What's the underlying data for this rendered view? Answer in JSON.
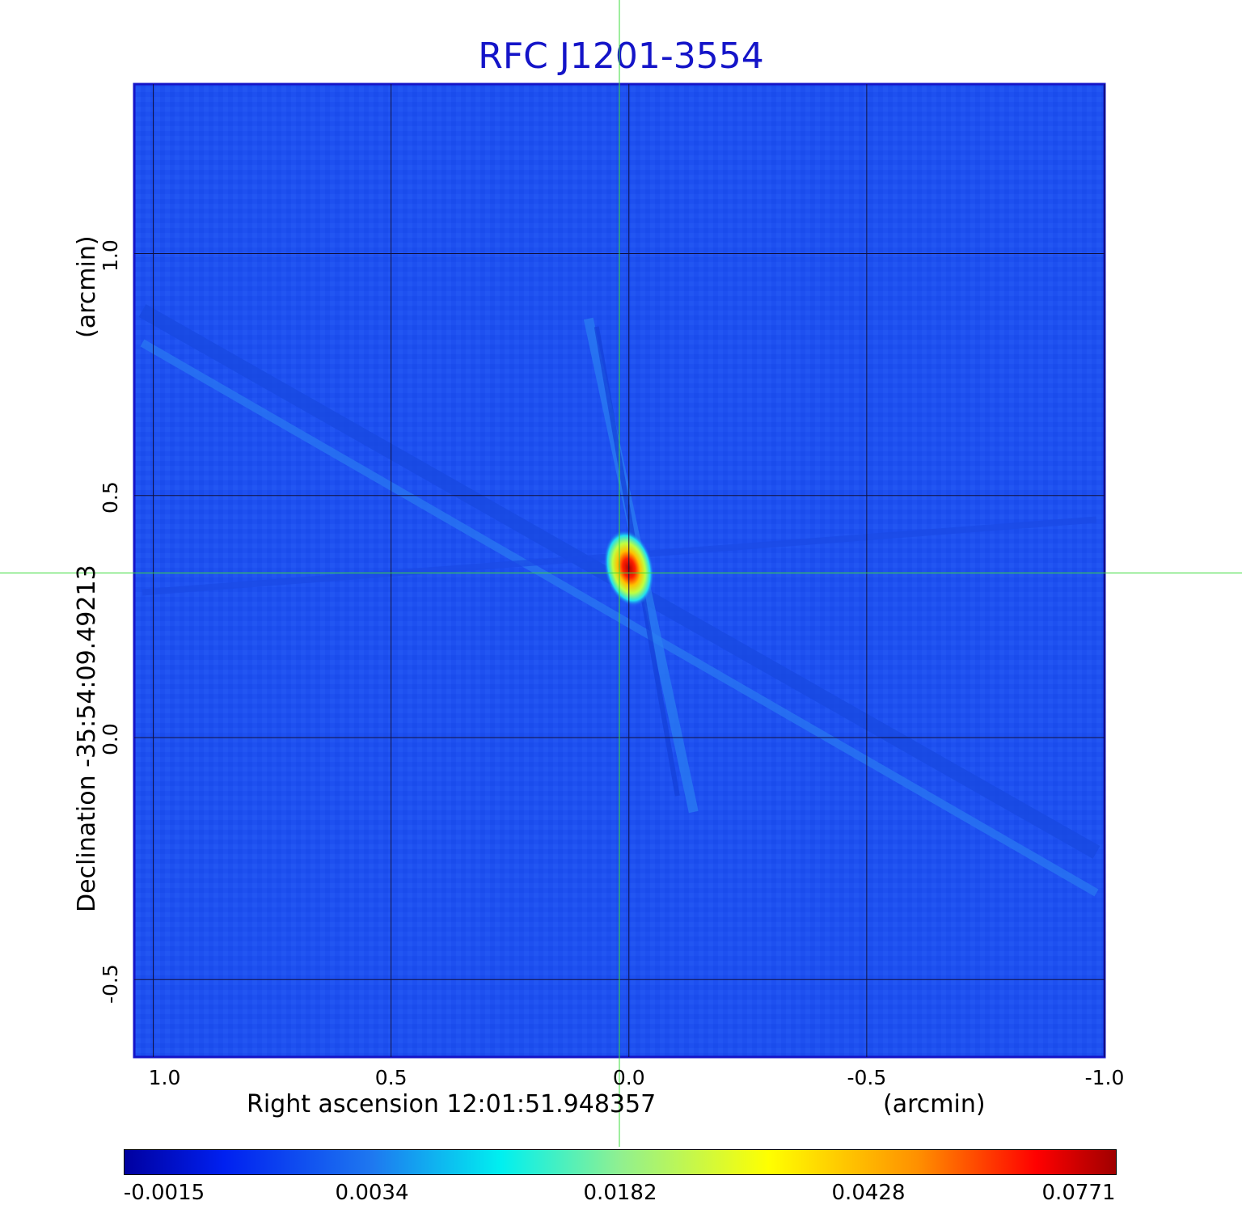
{
  "chart_data": {
    "type": "heatmap",
    "title": "RFC J1201-3554",
    "xlabel": "Right ascension  12:01:51.948357",
    "xunit": "(arcmin)",
    "ylabel": "Declination  -35:54:09.49213",
    "yunit": "(arcmin)",
    "xlim": [
      1.04,
      -1.0
    ],
    "ylim": [
      -0.66,
      1.35
    ],
    "x_ticks": [
      1.0,
      0.5,
      0.0,
      -0.5,
      -1.0
    ],
    "x_tick_labels": [
      "1.0",
      "0.5",
      "0.0",
      "-0.5",
      "-1.0"
    ],
    "y_ticks": [
      -0.5,
      0.0,
      0.5,
      1.0
    ],
    "y_tick_labels": [
      "-0.5",
      "0.0",
      "0.5",
      "1.0"
    ],
    "grid": true,
    "crosshair": {
      "x": 0.02,
      "y": 0.34,
      "color": "#3cdc3c"
    },
    "source_peak": {
      "x": 0.0,
      "y": 0.35,
      "value": 0.0771
    },
    "colorbar": {
      "ticks": [
        -0.0015,
        0.0034,
        0.0182,
        0.0428,
        0.0771
      ],
      "tick_labels": [
        "-0.0015",
        "0.0034",
        "0.0182",
        "0.0428",
        "0.0771"
      ],
      "colormap": "jet"
    },
    "colors": {
      "background_field": "#1e50f0",
      "title": "#1414c8",
      "frame": "#1414c8"
    }
  }
}
